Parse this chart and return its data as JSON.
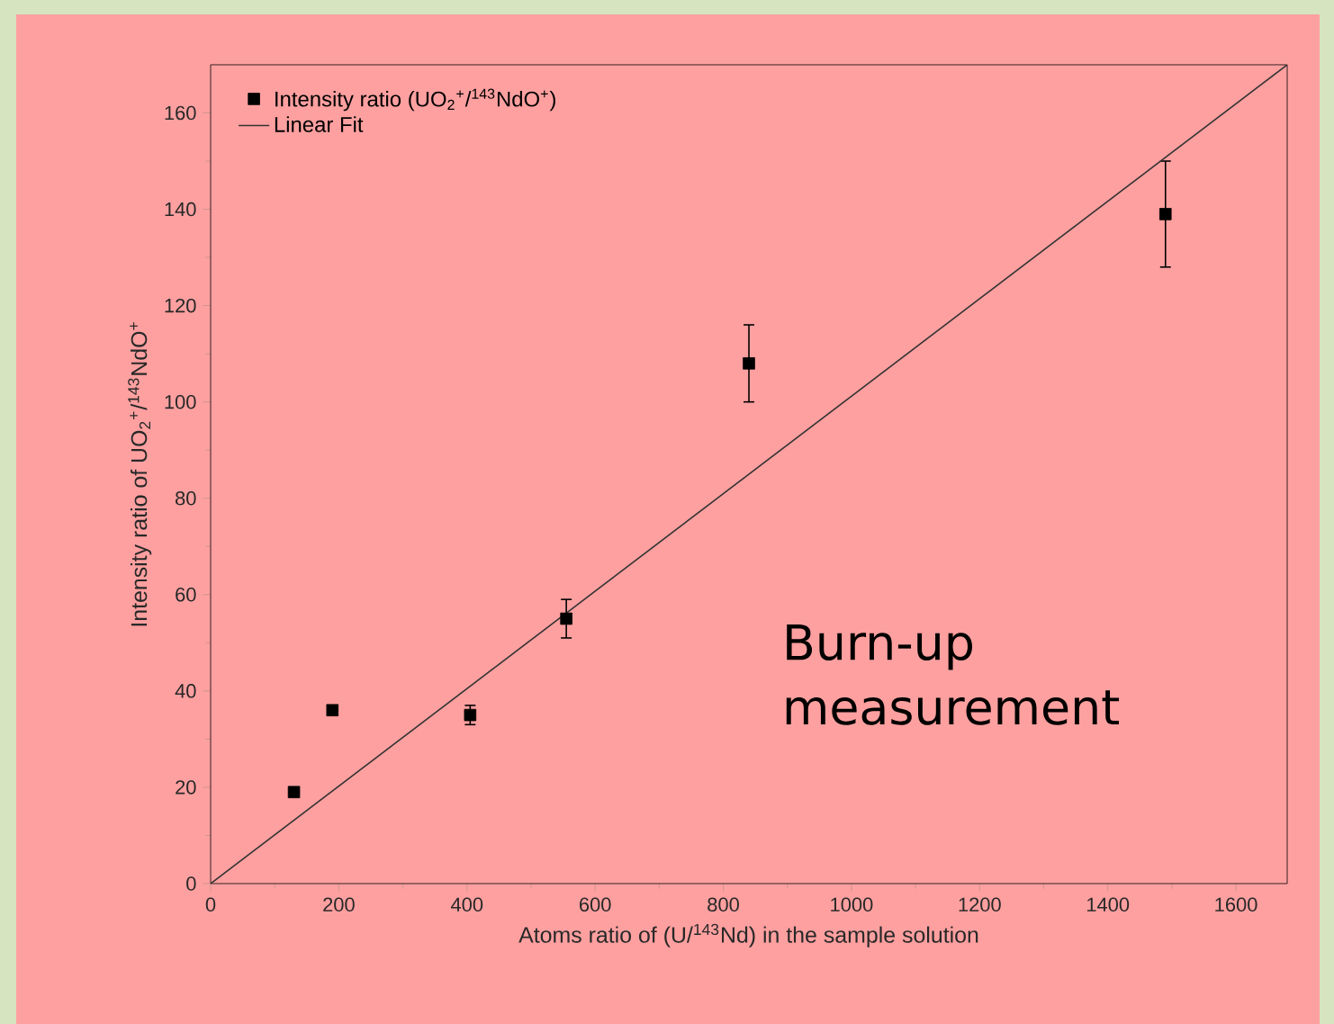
{
  "chart_data": {
    "type": "scatter",
    "xlabel": "Atoms ratio of (U/$^{143}$Nd) in the sample solution",
    "ylabel": "Intensity ratio of UO$_{2}$$^{+}$/$^{143}$NdO$^{+}$",
    "xlim": [
      0,
      1680
    ],
    "ylim": [
      0,
      170
    ],
    "xticks": [
      0,
      200,
      400,
      600,
      800,
      1000,
      1200,
      1400,
      1600
    ],
    "yticks": [
      0,
      20,
      40,
      60,
      80,
      100,
      120,
      140,
      160
    ],
    "grid": false,
    "legend": "top left",
    "series": [
      {
        "name": "Intensity ratio (UO$_{2}$$^{+}$/$^{143}$NdO$^{+}$)",
        "color": "#000000",
        "marker": "square",
        "x": [
          130,
          190,
          405,
          555,
          840,
          1490
        ],
        "values": [
          19,
          36,
          35,
          55,
          108,
          139
        ],
        "errors": [
          null,
          null,
          2,
          4,
          8,
          11
        ]
      },
      {
        "name": "Linear Fit",
        "type": "line",
        "color": "#333333",
        "marker": "none",
        "line_style": "solid",
        "x": [
          0,
          1680
        ],
        "values": [
          0,
          170
        ]
      }
    ],
    "annotations": [
      "Burn-up measurement"
    ]
  }
}
